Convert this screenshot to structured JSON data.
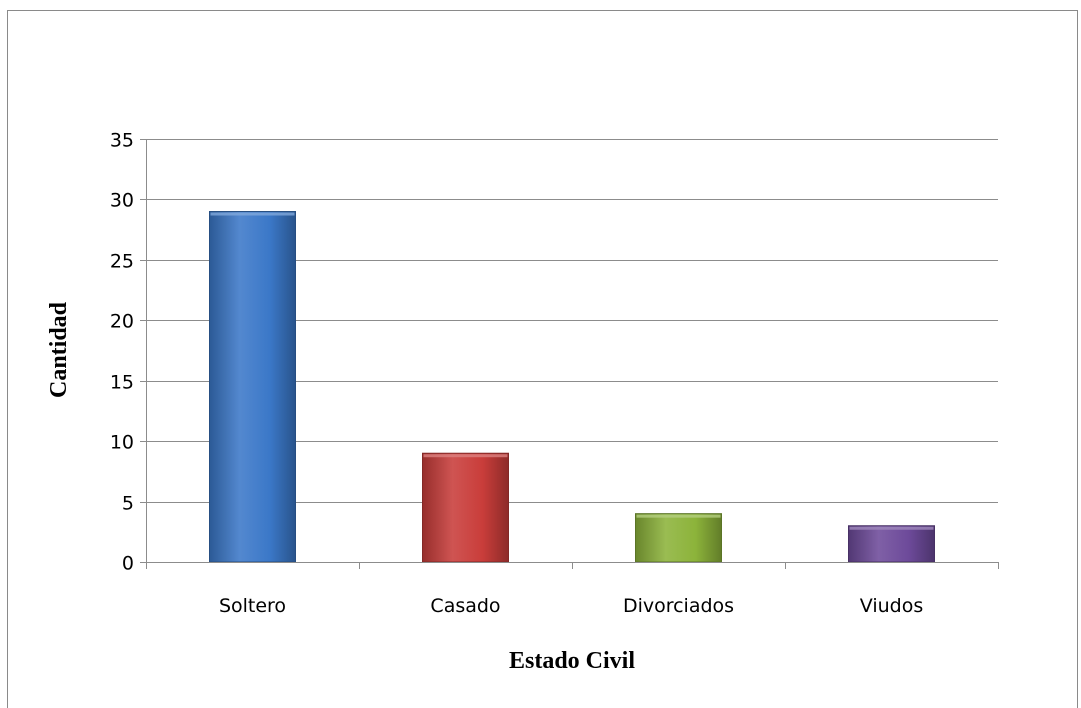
{
  "chart_data": {
    "type": "bar",
    "categories": [
      "Soltero",
      "Casado",
      "Divorciados",
      "Viudos"
    ],
    "values": [
      29,
      9,
      4,
      3
    ],
    "title": "",
    "xlabel": "Estado Civil",
    "ylabel": "Cantidad",
    "ylim": [
      0,
      35
    ],
    "yticks": [
      0,
      5,
      10,
      15,
      20,
      25,
      30,
      35
    ],
    "grid": true,
    "legend": "none",
    "colors": [
      "#3b78c8",
      "#c93d3a",
      "#8cb33a",
      "#6d4a9a"
    ]
  }
}
